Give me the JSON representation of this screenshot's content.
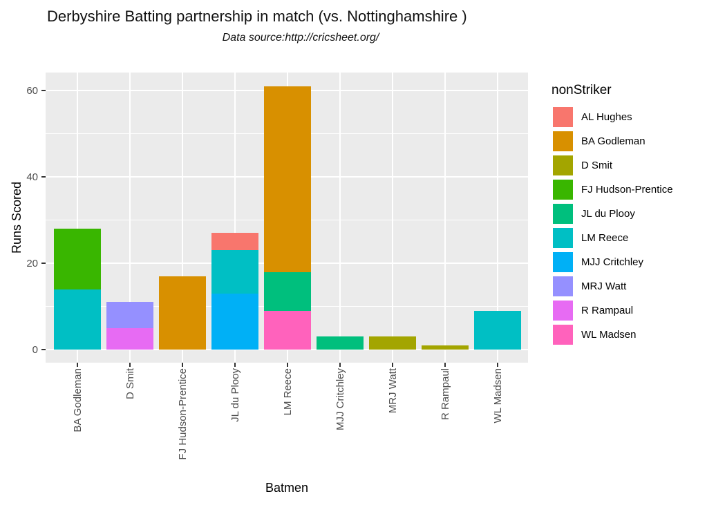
{
  "title": "Derbyshire Batting partnership in match (vs. Nottinghamshire )",
  "subtitle": "Data source:http://cricsheet.org/",
  "axes": {
    "x_title": "Batmen",
    "y_title": "Runs Scored"
  },
  "legend": {
    "title": "nonStriker",
    "position": "right"
  },
  "colors": {
    "panel_background": "#EBEBEB",
    "gridline": "#FFFFFF",
    "axis_text": "#4D4D4D",
    "tick_mark": "#333333",
    "text": "#000000"
  },
  "chart_data": {
    "type": "bar",
    "stacked": true,
    "title": "Derbyshire Batting partnership in match (vs. Nottinghamshire )",
    "subtitle": "Data source:http://cricsheet.org/",
    "xlabel": "Batmen",
    "ylabel": "Runs Scored",
    "ylim": [
      0,
      64
    ],
    "yticks": [
      0,
      20,
      40,
      60
    ],
    "grid": true,
    "legend_title": "nonStriker",
    "legend_position": "right",
    "categories": [
      "BA Godleman",
      "D Smit",
      "FJ Hudson-Prentice",
      "JL du Plooy",
      "LM Reece",
      "MJJ Critchley",
      "MRJ Watt",
      "R Rampaul",
      "WL Madsen"
    ],
    "series": [
      {
        "name": "AL Hughes",
        "color": "#F8766D",
        "values": [
          0,
          0,
          0,
          4,
          0,
          0,
          0,
          0,
          0
        ]
      },
      {
        "name": "BA Godleman",
        "color": "#D89000",
        "values": [
          0,
          0,
          17,
          0,
          43,
          0,
          0,
          0,
          0
        ]
      },
      {
        "name": "D Smit",
        "color": "#A3A500",
        "values": [
          0,
          0,
          0,
          0,
          0,
          0,
          3,
          1,
          0
        ]
      },
      {
        "name": "FJ Hudson-Prentice",
        "color": "#39B600",
        "values": [
          14,
          0,
          0,
          0,
          0,
          0,
          0,
          0,
          0
        ]
      },
      {
        "name": "JL du Plooy",
        "color": "#00BF7D",
        "values": [
          0,
          0,
          0,
          0,
          9,
          3,
          0,
          0,
          0
        ]
      },
      {
        "name": "LM Reece",
        "color": "#00BFC4",
        "values": [
          14,
          0,
          0,
          10,
          0,
          0,
          0,
          0,
          9
        ]
      },
      {
        "name": "MJJ Critchley",
        "color": "#00B0F6",
        "values": [
          0,
          0,
          0,
          13,
          0,
          0,
          0,
          0,
          0
        ]
      },
      {
        "name": "MRJ Watt",
        "color": "#9590FF",
        "values": [
          0,
          6,
          0,
          0,
          0,
          0,
          0,
          0,
          0
        ]
      },
      {
        "name": "R Rampaul",
        "color": "#E76BF3",
        "values": [
          0,
          5,
          0,
          0,
          0,
          0,
          0,
          0,
          0
        ]
      },
      {
        "name": "WL Madsen",
        "color": "#FF62BC",
        "values": [
          0,
          0,
          0,
          0,
          9,
          0,
          0,
          0,
          0
        ]
      }
    ],
    "category_totals": [
      28,
      11,
      17,
      27,
      61,
      3,
      3,
      1,
      9
    ]
  }
}
